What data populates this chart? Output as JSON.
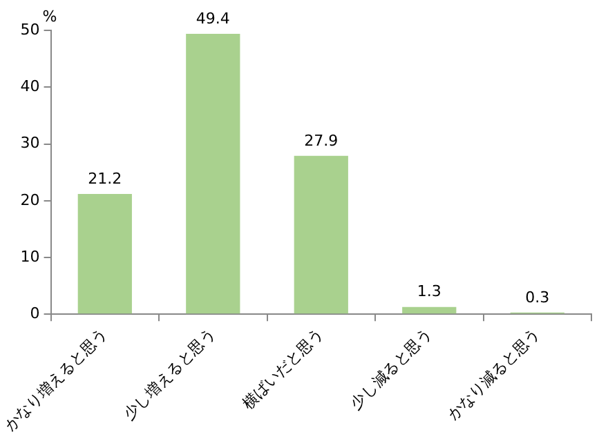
{
  "chart_data": {
    "type": "bar",
    "ylabel": "%",
    "categories": [
      "かなり増えると思う",
      "少し増えると思う",
      "横ばいだと思う",
      "少し減ると思う",
      "かなり減ると思う"
    ],
    "values": [
      21.2,
      49.4,
      27.9,
      1.3,
      0.3
    ],
    "color": "#a9d18e",
    "ylim": [
      0,
      50
    ],
    "yticks": [
      0,
      10,
      20,
      30,
      40,
      50
    ],
    "grid": false,
    "data_labels": true
  }
}
